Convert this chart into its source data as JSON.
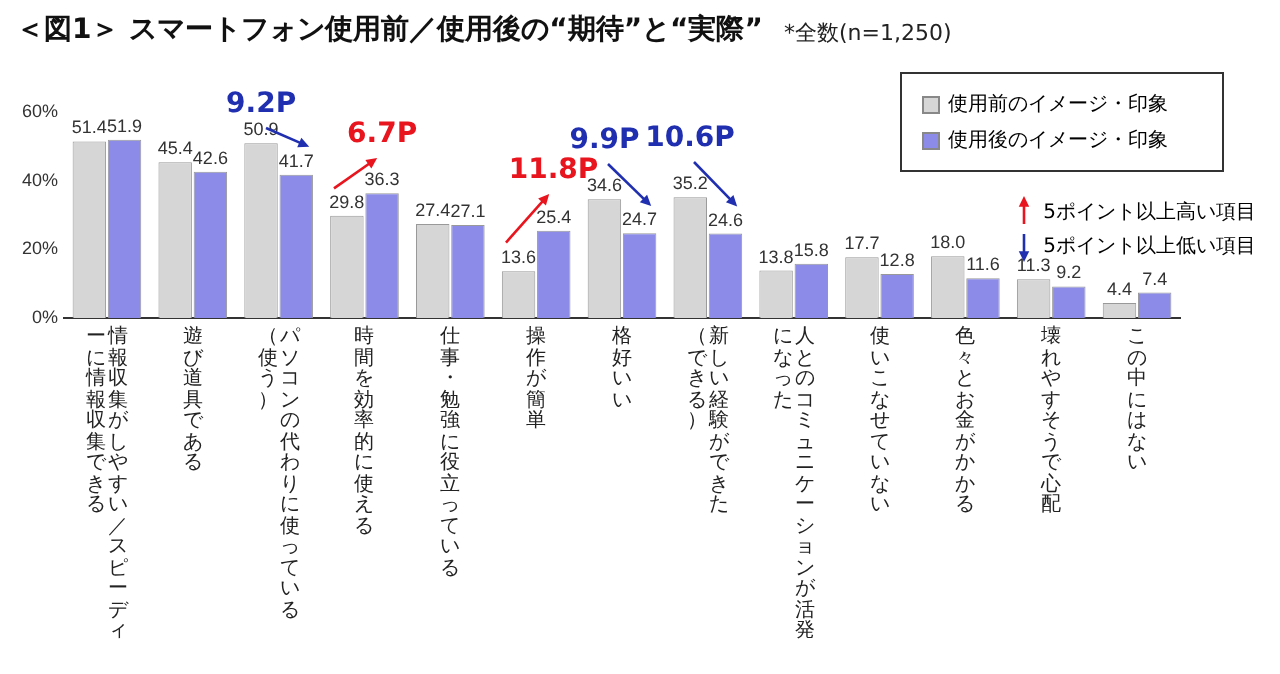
{
  "chart_data": {
    "type": "bar",
    "title": "＜図1＞ スマートフォン使用前／使用後の“期待”と“実際”",
    "subtitle": "*全数(n=1,250)",
    "categories": [
      "情報収集がしやすい／スピーディーに情報収集できる",
      "遊び道具である",
      "パソコンの代わりに使っている（使う）",
      "時間を効率的に使える",
      "仕事・勉強に役立っている",
      "操作が簡単",
      "格好いい",
      "新しい経験ができた（できる）",
      "人とのコミュニケーションが活発になった",
      "使いこなせていない",
      "色々とお金がかかる",
      "壊れやすそうで心配",
      "この中にはない"
    ],
    "series": [
      {
        "name": "使用前のイメージ・印象",
        "color": "#d6d6d6",
        "values": [
          51.4,
          45.4,
          50.9,
          29.8,
          27.4,
          13.6,
          34.6,
          35.2,
          13.8,
          17.7,
          18.0,
          11.3,
          4.4
        ],
        "value_labels": [
          "51.4",
          "45.4",
          "50.9",
          "29.8",
          "27.4",
          "13.6",
          "34.6",
          "35.2",
          "13.8",
          "17.7",
          "18.0",
          "11.3",
          "4.4"
        ]
      },
      {
        "name": "使用後のイメージ・印象",
        "color": "#8c8ce8",
        "values": [
          51.9,
          42.6,
          41.7,
          36.3,
          27.1,
          25.4,
          24.7,
          24.6,
          15.8,
          12.8,
          11.6,
          9.2,
          7.4
        ],
        "value_labels": [
          "51.9",
          "42.6",
          "41.7",
          "36.3",
          "27.1",
          "25.4",
          "24.7",
          "24.6",
          "15.8",
          "12.8",
          "11.6",
          "9.2",
          "7.4"
        ]
      }
    ],
    "ylim": [
      0,
      60
    ],
    "yticks": [
      {
        "value": 0,
        "label": "0%"
      },
      {
        "value": 20,
        "label": "20%"
      },
      {
        "value": 40,
        "label": "40%"
      },
      {
        "value": 60,
        "label": "60%"
      }
    ],
    "grid": false,
    "legend": "top right",
    "annotations": [
      {
        "text": "9.2P",
        "x": "パソコンの代わりに使っている（使う）",
        "y": 50.9
      },
      {
        "text": "6.7P",
        "x": "時間を効率的に使える",
        "y": 36.3
      },
      {
        "text": "11.8P",
        "x": "操作が簡単",
        "y": 25.4
      },
      {
        "text": "9.9P",
        "x": "格好いい",
        "y": 34.6
      },
      {
        "text": "10.6P",
        "x": "新しい経験ができた（できる）",
        "y": 35.2
      },
      "5ポイント以上高い項目",
      "5ポイント以上低い項目"
    ]
  }
}
